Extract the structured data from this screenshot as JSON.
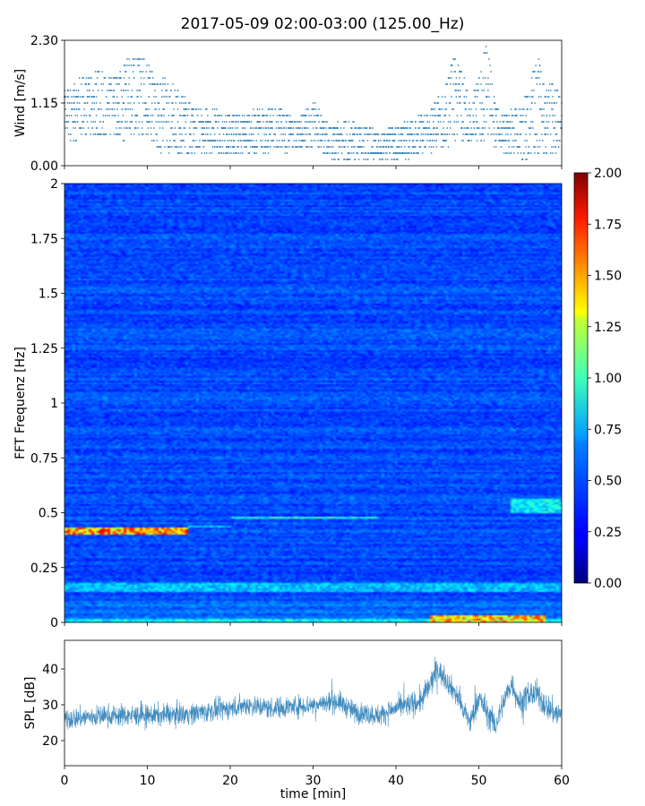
{
  "figure": {
    "title": "2017-05-09 02:00-03:00 (125.00_Hz)"
  },
  "chart_data": [
    {
      "type": "scatter",
      "name": "wind",
      "ylabel": "Wind [m/s]",
      "xlim": [
        0,
        60
      ],
      "ylim": [
        0,
        2.3
      ],
      "yticks": [
        0.0,
        1.15,
        2.3
      ],
      "ytick_labels": [
        "0.00",
        "1.15",
        "2.30"
      ],
      "marker_color": "#1f77b4",
      "wind_levels_step": 0.115,
      "envelope": {
        "x": [
          0,
          2,
          4,
          6,
          8,
          10,
          11,
          12,
          14,
          16,
          18,
          20,
          22,
          24,
          26,
          28,
          30,
          32,
          34,
          36,
          38,
          40,
          42,
          44,
          45,
          46,
          47,
          48,
          49,
          50,
          51,
          52,
          53,
          54,
          55,
          56,
          57,
          58,
          59,
          60
        ],
        "y": [
          1.4,
          1.6,
          1.7,
          1.6,
          2.0,
          1.9,
          1.5,
          1.6,
          1.3,
          1.0,
          1.0,
          0.9,
          0.9,
          1.1,
          1.0,
          0.8,
          1.2,
          0.7,
          0.8,
          0.7,
          0.6,
          0.7,
          0.8,
          1.0,
          1.2,
          1.4,
          2.0,
          1.7,
          1.1,
          1.8,
          2.2,
          1.1,
          0.9,
          1.0,
          1.1,
          1.3,
          2.1,
          1.4,
          1.5,
          1.2
        ]
      },
      "baseline": {
        "x": [
          0,
          10,
          12,
          20,
          30,
          33,
          40,
          45,
          50,
          52,
          55,
          60
        ],
        "y": [
          0.5,
          0.5,
          0.2,
          0.2,
          0.3,
          0.1,
          0.1,
          0.3,
          0.5,
          0.3,
          0.1,
          0.2
        ]
      }
    },
    {
      "type": "heatmap",
      "name": "spectrogram",
      "ylabel": "FFT Frequenz [Hz]",
      "xlim": [
        0,
        60
      ],
      "ylim": [
        0,
        2
      ],
      "yticks": [
        0,
        0.25,
        0.5,
        0.75,
        1,
        1.25,
        1.5,
        1.75,
        2
      ],
      "ytick_labels": [
        "0",
        "0.25",
        "0.5",
        "0.75",
        "1",
        "1.25",
        "1.5",
        "1.75",
        "2"
      ],
      "colormap": "jet",
      "background_level": 0.2,
      "features": [
        {
          "x": [
            0,
            15
          ],
          "freq": [
            0.4,
            0.43
          ],
          "level": 1.6
        },
        {
          "x": [
            15,
            20
          ],
          "freq": [
            0.43,
            0.44
          ],
          "level": 0.6
        },
        {
          "x": [
            20,
            38
          ],
          "freq": [
            0.47,
            0.48
          ],
          "level": 0.8
        },
        {
          "x": [
            54,
            60
          ],
          "freq": [
            0.5,
            0.56
          ],
          "level": 0.7
        },
        {
          "x": [
            0,
            60
          ],
          "freq": [
            0.14,
            0.18
          ],
          "level": 0.55
        },
        {
          "x": [
            0,
            60
          ],
          "freq": [
            0.0,
            0.02
          ],
          "level": 0.7
        },
        {
          "x": [
            44,
            58
          ],
          "freq": [
            0.0,
            0.03
          ],
          "level": 1.5
        }
      ],
      "colorbar": {
        "range": [
          0.0,
          2.0
        ],
        "ticks": [
          "0.00",
          "0.25",
          "0.50",
          "0.75",
          "1.00",
          "1.25",
          "1.50",
          "1.75",
          "2.00"
        ]
      }
    },
    {
      "type": "area",
      "name": "spl",
      "xlabel": "time [min]",
      "ylabel": "SPL [dB]",
      "xlim": [
        0,
        60
      ],
      "ylim": [
        13,
        48
      ],
      "xticks": [
        0,
        10,
        20,
        30,
        40,
        50,
        60
      ],
      "xtick_labels": [
        "0",
        "10",
        "20",
        "30",
        "40",
        "50",
        "60"
      ],
      "yticks": [
        20,
        30,
        40
      ],
      "ytick_labels": [
        "20",
        "30",
        "40"
      ],
      "color": "#1f77b4",
      "center": {
        "x": [
          0,
          5,
          10,
          15,
          20,
          22,
          25,
          30,
          33,
          35,
          38,
          40,
          43,
          44,
          45,
          46,
          47,
          48,
          49,
          50,
          51,
          52,
          53,
          54,
          55,
          56,
          57,
          58,
          59,
          60
        ],
        "y": [
          26,
          27,
          27,
          27.5,
          29,
          30,
          29,
          30,
          31,
          28,
          27,
          29,
          31,
          35,
          40,
          37,
          34,
          29,
          25,
          32,
          28,
          24,
          31,
          36,
          30,
          33,
          33,
          30,
          28,
          27
        ]
      },
      "band_halfwidth": {
        "x": [
          0,
          40,
          44,
          46,
          50,
          60
        ],
        "y": [
          4,
          4,
          5,
          4,
          5,
          5
        ]
      }
    }
  ]
}
